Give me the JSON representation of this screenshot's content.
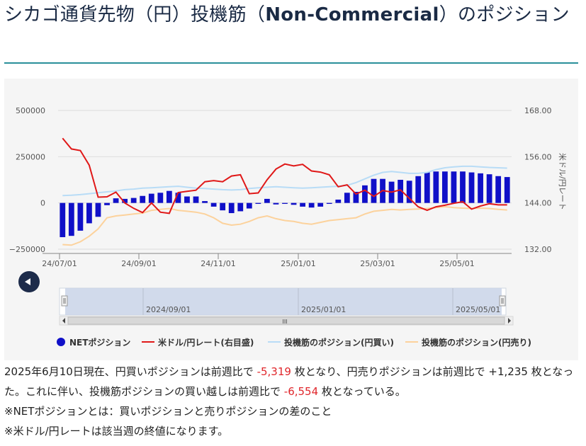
{
  "page": {
    "title_pre": "シカゴ通貨先物（円）投機筋（",
    "title_bold": "Non-Commercial",
    "title_post": "）のポジション"
  },
  "summary": {
    "p1": "2025年6月10日現在、円買いポジションは前週比で ",
    "v1": "-5,319",
    "p2": " 枚となり、円売りポジションは前週比で +1,235 枚となった。これに伴い、投機筋ポジションの買い越しは前週比で ",
    "v2": "-6,554",
    "p3": " 枚となっている。"
  },
  "notes": [
    "※NETポジションとは：買いポジションと売りポジションの差のこと",
    "※米ドル/円レートは該当週の終値になります。"
  ],
  "colors": {
    "net": "#1010c8",
    "rate": "#e01818",
    "long": "#b8dcf6",
    "short": "#fcd29c",
    "accent": "#2a8f9a"
  },
  "navigator": {
    "labels": [
      "2024/09/01",
      "2025/01/01",
      "2025/05/01"
    ],
    "scroll_grip": "III"
  },
  "chart_data": {
    "type": "bar",
    "x_ticks": [
      "24/07/01",
      "24/09/01",
      "24/11/01",
      "25/01/01",
      "25/03/01",
      "25/05/01"
    ],
    "left_axis": {
      "ticks": [
        "500000",
        "250000",
        "0",
        "−250000"
      ],
      "min": -250000,
      "max": 500000
    },
    "right_axis": {
      "label": "米ドル/円レート",
      "ticks": [
        "168.00",
        "156.00",
        "144.00",
        "132.00"
      ],
      "min": 132,
      "max": 168
    },
    "legend_position": "bottom",
    "grid": true,
    "series": [
      {
        "name": "NETポジション",
        "type": "bar",
        "axis": "left",
        "values": [
          -185000,
          -178000,
          -150000,
          -110000,
          -75000,
          -12000,
          25000,
          22000,
          27000,
          38000,
          50000,
          55000,
          65000,
          55000,
          35000,
          35000,
          10000,
          -20000,
          -40000,
          -55000,
          -45000,
          -30000,
          -5000,
          22000,
          -8000,
          -5000,
          -10000,
          -20000,
          -25000,
          -20000,
          -5000,
          18000,
          55000,
          60000,
          95000,
          130000,
          130000,
          115000,
          125000,
          120000,
          145000,
          165000,
          170000,
          170000,
          170000,
          170000,
          165000,
          160000,
          155000,
          145000,
          140000
        ]
      },
      {
        "name": "米ドル/円レート(右目盛)",
        "type": "line",
        "axis": "right",
        "values": [
          160.8,
          158.0,
          157.6,
          153.8,
          145.5,
          145.6,
          146.8,
          144.0,
          142.6,
          141.5,
          144.0,
          141.6,
          141.3,
          146.7,
          147.0,
          147.3,
          149.5,
          149.8,
          149.5,
          151.0,
          151.3,
          146.4,
          146.6,
          150.0,
          152.8,
          154.1,
          153.6,
          154.0,
          152.3,
          152.0,
          151.3,
          148.2,
          148.7,
          146.3,
          147.3,
          145.7,
          147.2,
          146.8,
          147.4,
          145.2,
          143.0,
          142.1,
          143.0,
          143.4,
          143.9,
          144.3,
          142.4,
          143.2,
          143.8,
          143.5,
          143.5
        ]
      },
      {
        "name": "投機筋のポジション(円買い)",
        "type": "line",
        "axis": "left",
        "values": [
          40000,
          42000,
          45000,
          50000,
          55000,
          60000,
          65000,
          72000,
          75000,
          80000,
          82000,
          85000,
          88000,
          90000,
          85000,
          80000,
          78000,
          75000,
          72000,
          70000,
          72000,
          78000,
          82000,
          85000,
          88000,
          85000,
          82000,
          80000,
          82000,
          85000,
          88000,
          90000,
          95000,
          110000,
          130000,
          150000,
          165000,
          170000,
          165000,
          160000,
          160000,
          165000,
          180000,
          190000,
          195000,
          198000,
          198000,
          195000,
          192000,
          190000,
          188000
        ]
      },
      {
        "name": "投機筋のポジション(円売り)",
        "type": "line",
        "axis": "left",
        "values": [
          -225000,
          -228000,
          -210000,
          -180000,
          -140000,
          -80000,
          -70000,
          -65000,
          -60000,
          -55000,
          -40000,
          -35000,
          -30000,
          -40000,
          -45000,
          -50000,
          -60000,
          -80000,
          -110000,
          -120000,
          -115000,
          -100000,
          -80000,
          -70000,
          -85000,
          -95000,
          -100000,
          -110000,
          -115000,
          -105000,
          -95000,
          -90000,
          -85000,
          -80000,
          -60000,
          -45000,
          -40000,
          -35000,
          -38000,
          -35000,
          -33000,
          -30000,
          -25000,
          -20000,
          -25000,
          -28000,
          -30000,
          -28000,
          -30000,
          -35000,
          -38000
        ]
      }
    ]
  }
}
